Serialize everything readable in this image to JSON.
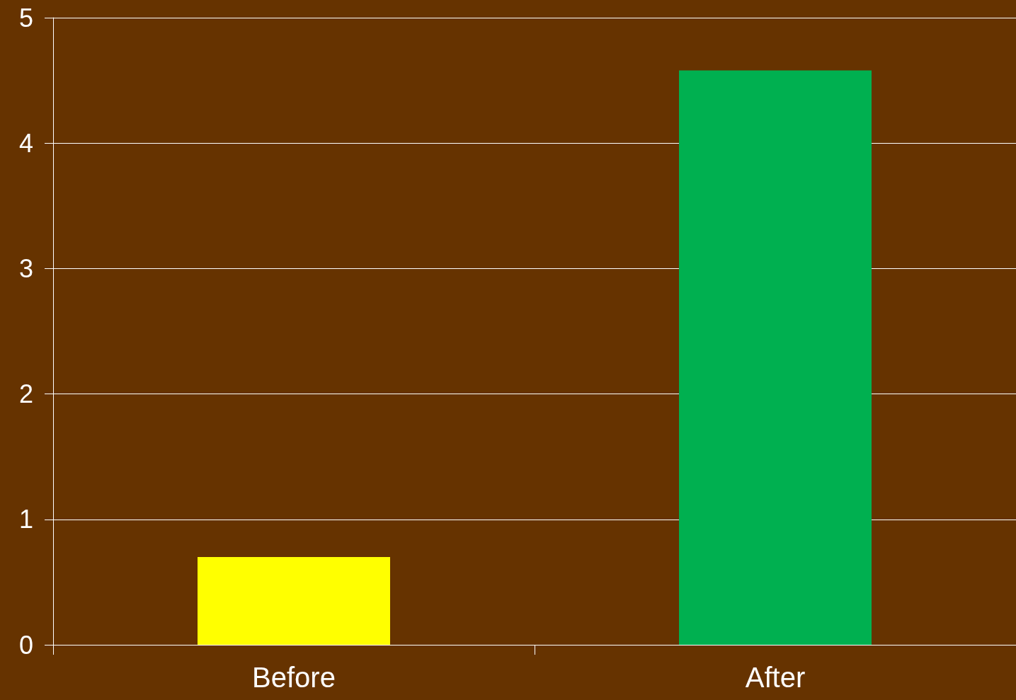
{
  "chart_data": {
    "type": "bar",
    "categories": [
      "Before",
      "After"
    ],
    "values": [
      0.7,
      4.58
    ],
    "colors": [
      "#ffff00",
      "#00b050"
    ],
    "ylim": [
      0,
      5
    ],
    "yticks": [
      0,
      1,
      2,
      3,
      4,
      5
    ],
    "grid": "y"
  }
}
